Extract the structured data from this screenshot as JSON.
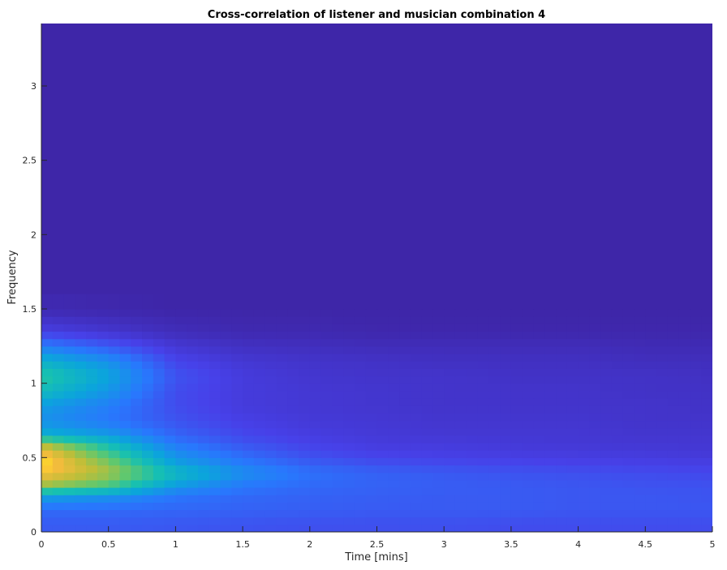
{
  "chart_data": {
    "type": "heatmap",
    "title": "Cross-correlation of listener and musician combination 4",
    "xlabel": "Time [mins]",
    "ylabel": "Frequency",
    "xlim": [
      0,
      5
    ],
    "ylim": [
      0,
      3.42
    ],
    "xticks": [
      "0",
      "0.5",
      "1",
      "1.5",
      "2",
      "2.5",
      "3",
      "3.5",
      "4",
      "4.5",
      "5"
    ],
    "yticks": [
      "0",
      "0.5",
      "1",
      "1.5",
      "2",
      "2.5",
      "3"
    ],
    "colormap": "parula",
    "grid": false,
    "x": [
      0,
      0.5,
      1,
      1.5,
      2,
      2.5,
      3,
      3.5,
      4,
      4.5,
      5
    ],
    "y": [
      0.05,
      0.15,
      0.25,
      0.3,
      0.35,
      0.4,
      0.45,
      0.5,
      0.55,
      0.6,
      0.65,
      0.75,
      0.85,
      0.95,
      1.05,
      1.15,
      1.25,
      1.35,
      1.5
    ],
    "values": [
      [
        0.22,
        0.22,
        0.21,
        0.2,
        0.19,
        0.19,
        0.19,
        0.18,
        0.18,
        0.18,
        0.18
      ],
      [
        0.26,
        0.26,
        0.25,
        0.24,
        0.23,
        0.22,
        0.22,
        0.22,
        0.21,
        0.21,
        0.21
      ],
      [
        0.45,
        0.4,
        0.3,
        0.26,
        0.24,
        0.23,
        0.22,
        0.22,
        0.21,
        0.21,
        0.2
      ],
      [
        0.75,
        0.65,
        0.4,
        0.3,
        0.26,
        0.24,
        0.23,
        0.22,
        0.21,
        0.2,
        0.2
      ],
      [
        0.85,
        0.72,
        0.48,
        0.33,
        0.27,
        0.24,
        0.22,
        0.21,
        0.2,
        0.19,
        0.18
      ],
      [
        0.92,
        0.8,
        0.55,
        0.38,
        0.28,
        0.24,
        0.22,
        0.2,
        0.19,
        0.18,
        0.17
      ],
      [
        0.98,
        0.75,
        0.45,
        0.32,
        0.24,
        0.2,
        0.18,
        0.17,
        0.16,
        0.15,
        0.14
      ],
      [
        0.95,
        0.7,
        0.4,
        0.28,
        0.2,
        0.16,
        0.15,
        0.14,
        0.13,
        0.13,
        0.12
      ],
      [
        0.9,
        0.62,
        0.35,
        0.24,
        0.17,
        0.14,
        0.13,
        0.12,
        0.12,
        0.11,
        0.1
      ],
      [
        0.78,
        0.55,
        0.3,
        0.2,
        0.15,
        0.12,
        0.12,
        0.11,
        0.1,
        0.1,
        0.1
      ],
      [
        0.5,
        0.42,
        0.25,
        0.17,
        0.13,
        0.11,
        0.1,
        0.1,
        0.1,
        0.09,
        0.09
      ],
      [
        0.38,
        0.3,
        0.2,
        0.14,
        0.11,
        0.1,
        0.09,
        0.09,
        0.09,
        0.08,
        0.08
      ],
      [
        0.42,
        0.32,
        0.18,
        0.12,
        0.1,
        0.09,
        0.08,
        0.08,
        0.08,
        0.08,
        0.07
      ],
      [
        0.55,
        0.4,
        0.18,
        0.12,
        0.1,
        0.09,
        0.08,
        0.08,
        0.08,
        0.07,
        0.07
      ],
      [
        0.62,
        0.45,
        0.2,
        0.12,
        0.09,
        0.08,
        0.08,
        0.07,
        0.07,
        0.07,
        0.06
      ],
      [
        0.5,
        0.38,
        0.16,
        0.1,
        0.08,
        0.07,
        0.06,
        0.06,
        0.06,
        0.05,
        0.05
      ],
      [
        0.32,
        0.22,
        0.1,
        0.06,
        0.05,
        0.04,
        0.04,
        0.04,
        0.04,
        0.03,
        0.03
      ],
      [
        0.14,
        0.09,
        0.04,
        0.02,
        0.02,
        0.01,
        0.01,
        0.01,
        0.01,
        0.01,
        0.01
      ],
      [
        0.02,
        0.01,
        0.0,
        0.0,
        0.0,
        0.0,
        0.0,
        0.0,
        0.0,
        0.0,
        0.0
      ]
    ]
  }
}
